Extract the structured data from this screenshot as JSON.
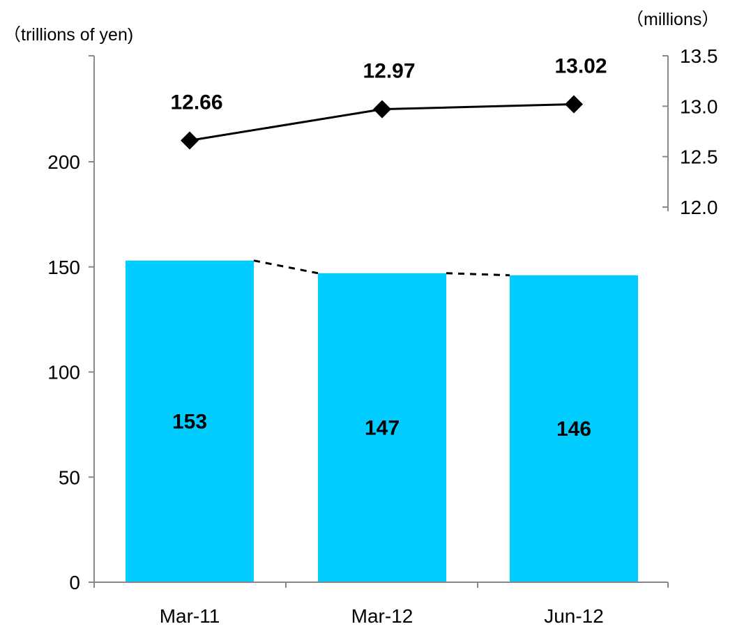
{
  "chart_data": {
    "type": "bar",
    "categories": [
      "Mar-11",
      "Mar-12",
      "Jun-12"
    ],
    "left_axis": {
      "unit_label": "（trillions of yen)",
      "ylim": [
        0,
        250
      ],
      "ticks": [
        0,
        50,
        100,
        150,
        200
      ],
      "tick_labels": [
        "0",
        "50",
        "100",
        "150",
        "200"
      ]
    },
    "right_axis": {
      "unit_label": "（millions）",
      "ylim": [
        12.0,
        13.5
      ],
      "ticks": [
        12.0,
        12.5,
        13.0,
        13.5
      ],
      "tick_labels": [
        "12.0",
        "12.5",
        "13.0",
        "13.5"
      ]
    },
    "series": [
      {
        "type": "bar",
        "axis": "left",
        "values": [
          153,
          147,
          146
        ],
        "value_labels": [
          "153",
          "147",
          "146"
        ],
        "color": "#00ccff"
      },
      {
        "type": "line",
        "axis": "right",
        "marker": "diamond",
        "values": [
          12.66,
          12.97,
          13.02
        ],
        "value_labels": [
          "12.66",
          "12.97",
          "13.02"
        ],
        "color": "#000000"
      }
    ],
    "connectors": "dashed lines joining bar tops",
    "grid": false,
    "legend": "none"
  }
}
